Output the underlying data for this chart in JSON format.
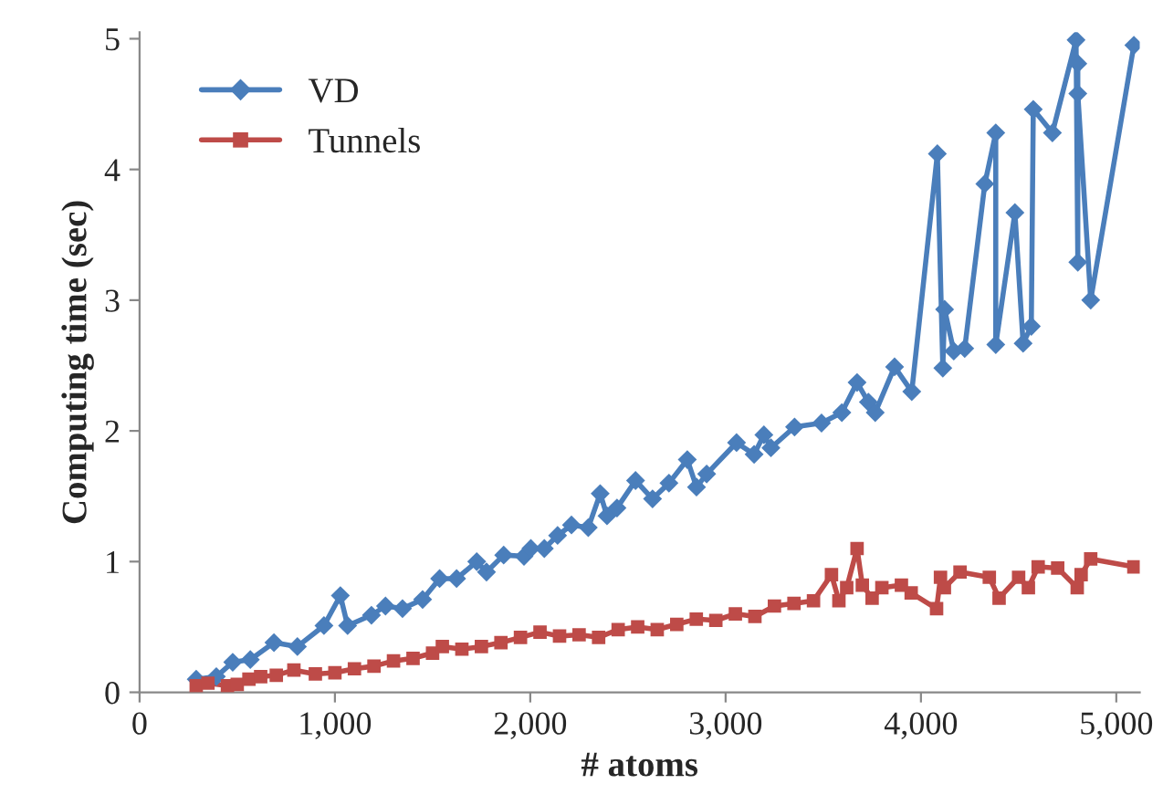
{
  "chart_data": {
    "type": "line",
    "xlabel": "# atoms",
    "ylabel": "Computing time (sec)",
    "xlim": [
      0,
      5120
    ],
    "xticks": [
      0,
      {
        "value": 1000,
        "label": "1,000"
      },
      {
        "value": 2000,
        "label": "2,000"
      },
      {
        "value": 3000,
        "label": "3,000"
      },
      {
        "value": 4000,
        "label": "4,000"
      },
      {
        "value": 5000,
        "label": "5,000"
      }
    ],
    "ylim": [
      0,
      5.05
    ],
    "yticks": [
      0,
      1,
      2,
      3,
      4,
      5
    ],
    "grid": false,
    "legend": "top left",
    "series": [
      {
        "name": "VD",
        "color": "#4a7ebb",
        "marker": "diamond",
        "x": [
          290,
          393,
          477,
          567,
          688,
          808,
          944,
          1028,
          1065,
          1187,
          1259,
          1346,
          1449,
          1536,
          1623,
          1726,
          1776,
          1864,
          1968,
          2003,
          2072,
          2140,
          2211,
          2297,
          2358,
          2393,
          2444,
          2539,
          2626,
          2710,
          2804,
          2851,
          2903,
          3056,
          3146,
          3196,
          3232,
          3353,
          3491,
          3595,
          3673,
          3731,
          3766,
          3865,
          3953,
          4084,
          4112,
          4121,
          4168,
          4224,
          4327,
          4383,
          4383,
          4481,
          4523,
          4565,
          4575,
          4673,
          4794,
          4803,
          4803,
          4803,
          4869,
          5090
        ],
        "values": [
          0.1,
          0.12,
          0.23,
          0.25,
          0.38,
          0.35,
          0.51,
          0.74,
          0.51,
          0.59,
          0.66,
          0.64,
          0.71,
          0.87,
          0.87,
          1.0,
          0.92,
          1.05,
          1.04,
          1.1,
          1.1,
          1.2,
          1.28,
          1.26,
          1.52,
          1.35,
          1.41,
          1.62,
          1.48,
          1.6,
          1.78,
          1.57,
          1.67,
          1.91,
          1.82,
          1.97,
          1.87,
          2.03,
          2.06,
          2.14,
          2.37,
          2.22,
          2.14,
          2.49,
          2.3,
          4.12,
          2.48,
          2.93,
          2.61,
          2.63,
          3.89,
          4.28,
          2.66,
          3.67,
          2.67,
          2.8,
          4.46,
          4.28,
          4.99,
          3.29,
          4.81,
          4.58,
          3.0,
          4.95
        ]
      },
      {
        "name": "Tunnels",
        "color": "#be4b48",
        "marker": "square",
        "x": [
          290,
          350,
          450,
          500,
          560,
          620,
          700,
          790,
          900,
          1000,
          1100,
          1200,
          1300,
          1400,
          1500,
          1550,
          1650,
          1750,
          1850,
          1950,
          2050,
          2150,
          2250,
          2350,
          2450,
          2550,
          2650,
          2750,
          2850,
          2950,
          3050,
          3150,
          3250,
          3350,
          3450,
          3542,
          3580,
          3620,
          3673,
          3700,
          3750,
          3800,
          3900,
          3950,
          4080,
          4100,
          4120,
          4200,
          4350,
          4400,
          4500,
          4550,
          4600,
          4700,
          4800,
          4820,
          4869,
          5090
        ],
        "values": [
          0.05,
          0.07,
          0.05,
          0.06,
          0.1,
          0.12,
          0.13,
          0.17,
          0.14,
          0.15,
          0.18,
          0.2,
          0.24,
          0.26,
          0.3,
          0.35,
          0.33,
          0.35,
          0.38,
          0.42,
          0.46,
          0.43,
          0.44,
          0.42,
          0.48,
          0.5,
          0.48,
          0.52,
          0.56,
          0.55,
          0.6,
          0.58,
          0.66,
          0.68,
          0.7,
          0.9,
          0.7,
          0.8,
          1.1,
          0.82,
          0.72,
          0.8,
          0.82,
          0.76,
          0.64,
          0.88,
          0.8,
          0.92,
          0.88,
          0.72,
          0.88,
          0.8,
          0.96,
          0.95,
          0.8,
          0.9,
          1.02,
          0.96
        ]
      }
    ]
  }
}
